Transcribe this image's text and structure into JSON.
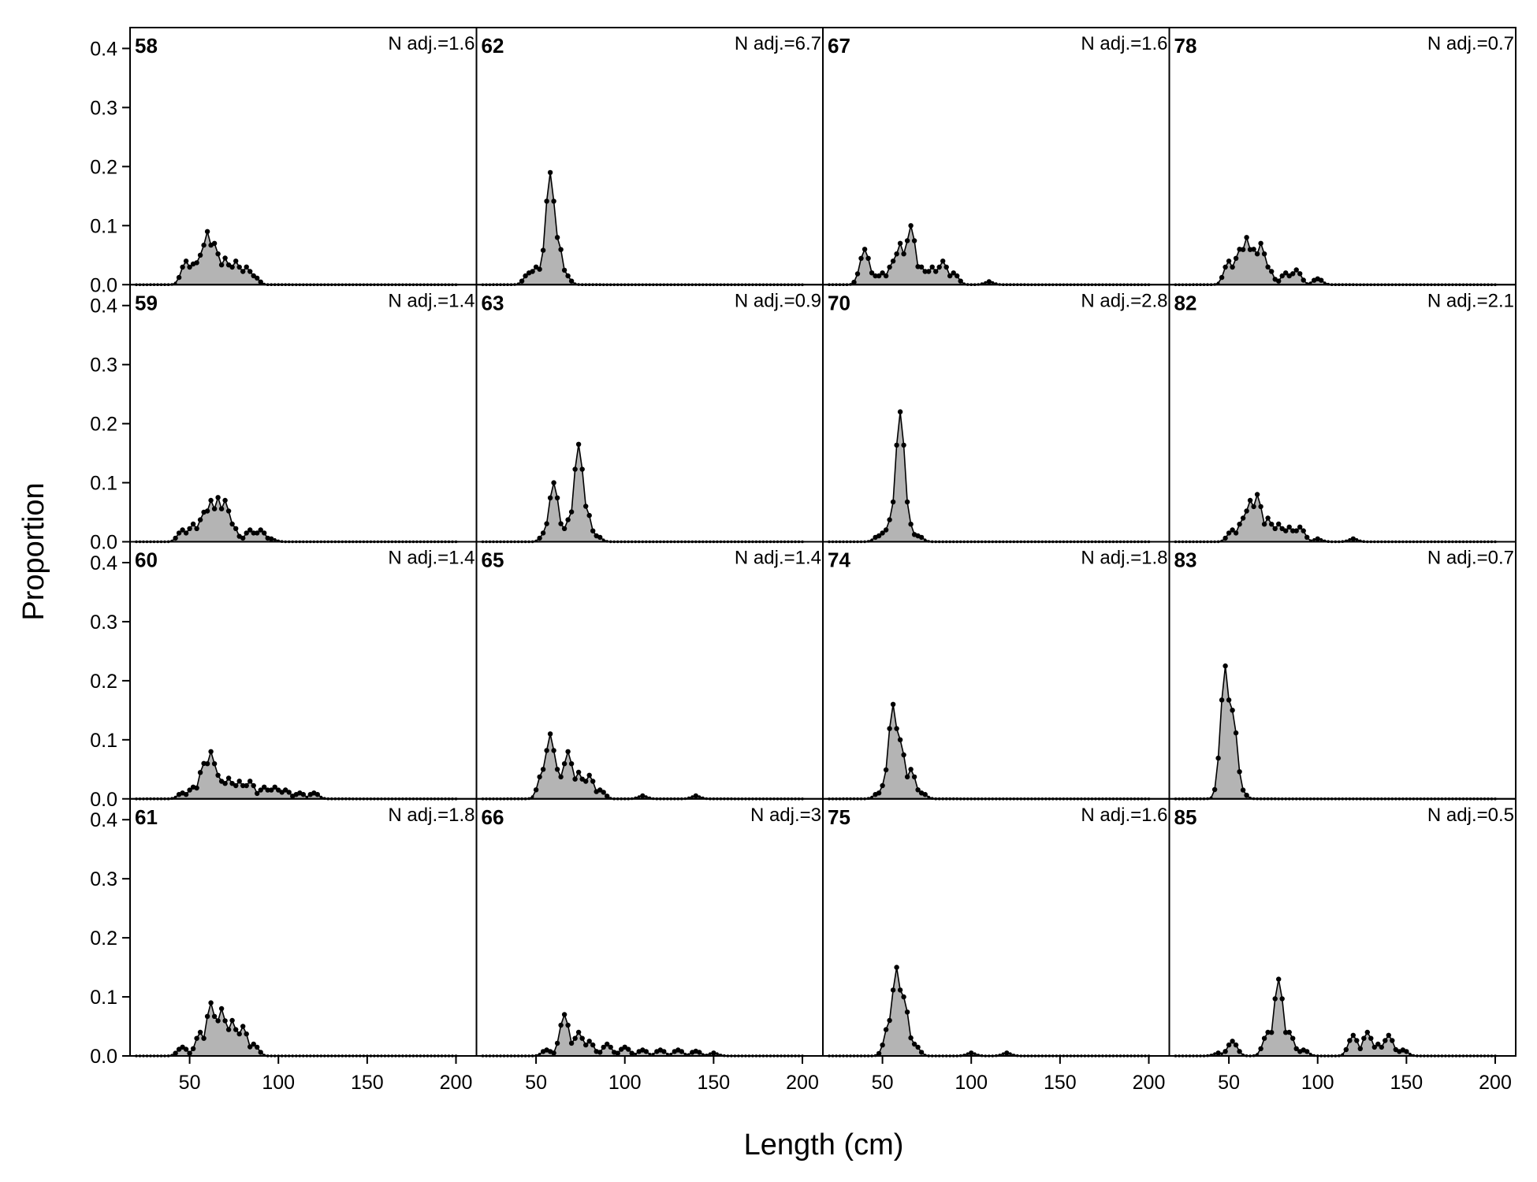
{
  "chart_data": {
    "type": "area",
    "grid": false,
    "xlabel": "Length (cm)",
    "ylabel": "Proportion",
    "xlim": [
      20,
      200
    ],
    "ylim": [
      0,
      0.43
    ],
    "x_ticks": [
      {
        "value": 50,
        "label": "50"
      },
      {
        "value": 100,
        "label": "100"
      },
      {
        "value": 150,
        "label": "150"
      },
      {
        "value": 200,
        "label": "200"
      }
    ],
    "y_ticks": [
      {
        "value": 0,
        "label": "0.0"
      },
      {
        "value": 0.1,
        "label": "0.1"
      },
      {
        "value": 0.2,
        "label": "0.2"
      },
      {
        "value": 0.3,
        "label": "0.3"
      },
      {
        "value": 0.4,
        "label": "0.4"
      }
    ],
    "x_range": [
      20,
      200
    ],
    "x_step": 2,
    "panels": [
      {
        "label": "58",
        "n_adj": "N adj.=1.6",
        "peaks": [
          [
            48,
            0.04
          ],
          [
            52,
            0.035
          ],
          [
            56,
            0.05
          ],
          [
            60,
            0.09
          ],
          [
            64,
            0.07
          ],
          [
            70,
            0.045
          ],
          [
            76,
            0.04
          ],
          [
            82,
            0.03
          ],
          [
            86,
            0.015
          ]
        ]
      },
      {
        "label": "62",
        "n_adj": "N adj.=6.7",
        "peaks": [
          [
            46,
            0.02
          ],
          [
            50,
            0.03
          ],
          [
            54,
            0.035
          ],
          [
            58,
            0.19
          ],
          [
            62,
            0.08
          ],
          [
            66,
            0.02
          ]
        ]
      },
      {
        "label": "67",
        "n_adj": "N adj.=1.6",
        "peaks": [
          [
            40,
            0.06
          ],
          [
            44,
            0.02
          ],
          [
            50,
            0.02
          ],
          [
            56,
            0.04
          ],
          [
            60,
            0.07
          ],
          [
            66,
            0.1
          ],
          [
            72,
            0.03
          ],
          [
            78,
            0.03
          ],
          [
            84,
            0.04
          ],
          [
            90,
            0.02
          ],
          [
            110,
            0.005
          ]
        ]
      },
      {
        "label": "78",
        "n_adj": "N adj.=0.7",
        "peaks": [
          [
            50,
            0.04
          ],
          [
            56,
            0.06
          ],
          [
            60,
            0.08
          ],
          [
            64,
            0.06
          ],
          [
            68,
            0.07
          ],
          [
            72,
            0.03
          ],
          [
            82,
            0.02
          ],
          [
            88,
            0.025
          ],
          [
            100,
            0.01
          ]
        ]
      },
      {
        "label": "59",
        "n_adj": "N adj.=1.4",
        "peaks": [
          [
            46,
            0.02
          ],
          [
            52,
            0.03
          ],
          [
            58,
            0.05
          ],
          [
            62,
            0.07
          ],
          [
            66,
            0.075
          ],
          [
            70,
            0.07
          ],
          [
            74,
            0.03
          ],
          [
            84,
            0.02
          ],
          [
            90,
            0.02
          ],
          [
            96,
            0.005
          ]
        ]
      },
      {
        "label": "63",
        "n_adj": "N adj.=0.9",
        "peaks": [
          [
            56,
            0.02
          ],
          [
            60,
            0.1
          ],
          [
            64,
            0.03
          ],
          [
            70,
            0.05
          ],
          [
            74,
            0.165
          ],
          [
            78,
            0.06
          ],
          [
            84,
            0.01
          ]
        ]
      },
      {
        "label": "70",
        "n_adj": "N adj.=2.8",
        "peaks": [
          [
            48,
            0.01
          ],
          [
            52,
            0.02
          ],
          [
            56,
            0.05
          ],
          [
            60,
            0.22
          ],
          [
            64,
            0.04
          ],
          [
            70,
            0.01
          ]
        ]
      },
      {
        "label": "82",
        "n_adj": "N adj.=2.1",
        "peaks": [
          [
            52,
            0.02
          ],
          [
            58,
            0.04
          ],
          [
            62,
            0.07
          ],
          [
            66,
            0.08
          ],
          [
            72,
            0.04
          ],
          [
            78,
            0.03
          ],
          [
            84,
            0.025
          ],
          [
            90,
            0.025
          ],
          [
            100,
            0.005
          ],
          [
            120,
            0.005
          ]
        ]
      },
      {
        "label": "60",
        "n_adj": "N adj.=1.4",
        "peaks": [
          [
            46,
            0.01
          ],
          [
            52,
            0.02
          ],
          [
            58,
            0.06
          ],
          [
            62,
            0.08
          ],
          [
            66,
            0.04
          ],
          [
            72,
            0.035
          ],
          [
            78,
            0.03
          ],
          [
            84,
            0.03
          ],
          [
            92,
            0.02
          ],
          [
            98,
            0.02
          ],
          [
            104,
            0.015
          ],
          [
            112,
            0.01
          ],
          [
            120,
            0.01
          ]
        ]
      },
      {
        "label": "65",
        "n_adj": "N adj.=1.4",
        "peaks": [
          [
            54,
            0.05
          ],
          [
            58,
            0.11
          ],
          [
            62,
            0.05
          ],
          [
            68,
            0.08
          ],
          [
            74,
            0.045
          ],
          [
            80,
            0.04
          ],
          [
            86,
            0.015
          ],
          [
            110,
            0.005
          ],
          [
            140,
            0.005
          ]
        ]
      },
      {
        "label": "74",
        "n_adj": "N adj.=1.8",
        "peaks": [
          [
            48,
            0.01
          ],
          [
            52,
            0.03
          ],
          [
            56,
            0.16
          ],
          [
            60,
            0.1
          ],
          [
            66,
            0.05
          ],
          [
            72,
            0.01
          ]
        ]
      },
      {
        "label": "83",
        "n_adj": "N adj.=0.7",
        "peaks": [
          [
            48,
            0.225
          ],
          [
            52,
            0.15
          ],
          [
            56,
            0.02
          ]
        ]
      },
      {
        "label": "61",
        "n_adj": "N adj.=1.8",
        "peaks": [
          [
            46,
            0.015
          ],
          [
            56,
            0.04
          ],
          [
            62,
            0.09
          ],
          [
            68,
            0.08
          ],
          [
            74,
            0.06
          ],
          [
            80,
            0.05
          ],
          [
            86,
            0.02
          ]
        ]
      },
      {
        "label": "66",
        "n_adj": "N adj.=3",
        "peaks": [
          [
            56,
            0.01
          ],
          [
            66,
            0.07
          ],
          [
            74,
            0.04
          ],
          [
            80,
            0.025
          ],
          [
            90,
            0.02
          ],
          [
            100,
            0.015
          ],
          [
            110,
            0.01
          ],
          [
            120,
            0.01
          ],
          [
            130,
            0.01
          ],
          [
            140,
            0.008
          ],
          [
            150,
            0.005
          ]
        ]
      },
      {
        "label": "75",
        "n_adj": "N adj.=1.6",
        "peaks": [
          [
            54,
            0.06
          ],
          [
            58,
            0.15
          ],
          [
            62,
            0.1
          ],
          [
            68,
            0.02
          ],
          [
            100,
            0.005
          ],
          [
            120,
            0.005
          ]
        ]
      },
      {
        "label": "85",
        "n_adj": "N adj.=0.5",
        "peaks": [
          [
            44,
            0.005
          ],
          [
            52,
            0.025
          ],
          [
            72,
            0.04
          ],
          [
            78,
            0.13
          ],
          [
            84,
            0.04
          ],
          [
            92,
            0.01
          ],
          [
            120,
            0.035
          ],
          [
            128,
            0.04
          ],
          [
            134,
            0.02
          ],
          [
            140,
            0.035
          ],
          [
            148,
            0.01
          ]
        ]
      }
    ]
  }
}
